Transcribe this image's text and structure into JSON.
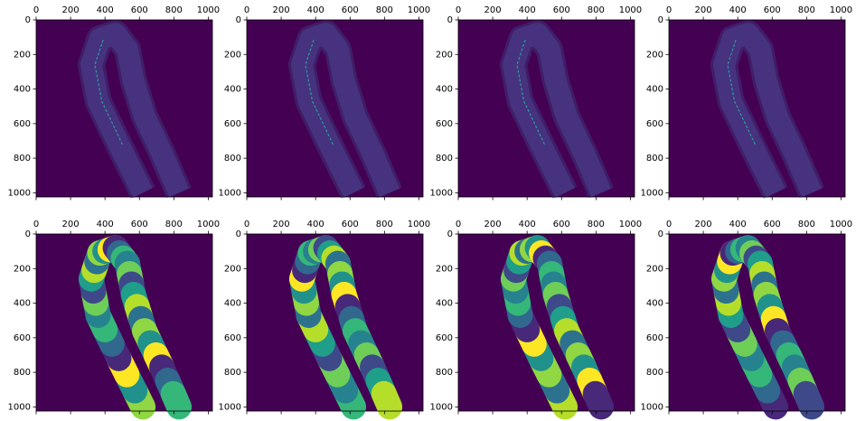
{
  "chart_data": [
    {
      "type": "image",
      "xlim": [
        0,
        1024
      ],
      "ylim": [
        1024,
        0
      ],
      "xticks": [
        0,
        200,
        400,
        600,
        800,
        1000
      ],
      "yticks": [
        0,
        200,
        400,
        600,
        800,
        1000
      ]
    },
    {
      "type": "image",
      "xlim": [
        0,
        1024
      ],
      "ylim": [
        1024,
        0
      ],
      "xticks": [
        0,
        200,
        400,
        600,
        800,
        1000
      ],
      "yticks": [
        0,
        200,
        400,
        600,
        800,
        1000
      ]
    },
    {
      "type": "image",
      "xlim": [
        0,
        1024
      ],
      "ylim": [
        1024,
        0
      ],
      "xticks": [
        0,
        200,
        400,
        600,
        800,
        1000
      ],
      "yticks": [
        0,
        200,
        400,
        600,
        800,
        1000
      ]
    },
    {
      "type": "image",
      "xlim": [
        0,
        1024
      ],
      "ylim": [
        1024,
        0
      ],
      "xticks": [
        0,
        200,
        400,
        600,
        800,
        1000
      ],
      "yticks": [
        0,
        200,
        400,
        600,
        800,
        1000
      ]
    },
    {
      "type": "segmentation",
      "xlim": [
        0,
        1024
      ],
      "ylim": [
        1024,
        0
      ],
      "xticks": [
        0,
        200,
        400,
        600,
        800,
        1000
      ],
      "yticks": [
        0,
        200,
        400,
        600,
        800,
        1000
      ]
    },
    {
      "type": "segmentation",
      "xlim": [
        0,
        1024
      ],
      "ylim": [
        1024,
        0
      ],
      "xticks": [
        0,
        200,
        400,
        600,
        800,
        1000
      ],
      "yticks": [
        0,
        200,
        400,
        600,
        800,
        1000
      ]
    },
    {
      "type": "segmentation",
      "xlim": [
        0,
        1024
      ],
      "ylim": [
        1024,
        0
      ],
      "xticks": [
        0,
        200,
        400,
        600,
        800,
        1000
      ],
      "yticks": [
        0,
        200,
        400,
        600,
        800,
        1000
      ]
    },
    {
      "type": "segmentation",
      "xlim": [
        0,
        1024
      ],
      "ylim": [
        1024,
        0
      ],
      "xticks": [
        0,
        200,
        400,
        600,
        800,
        1000
      ],
      "yticks": [
        0,
        200,
        400,
        600,
        800,
        1000
      ]
    }
  ]
}
